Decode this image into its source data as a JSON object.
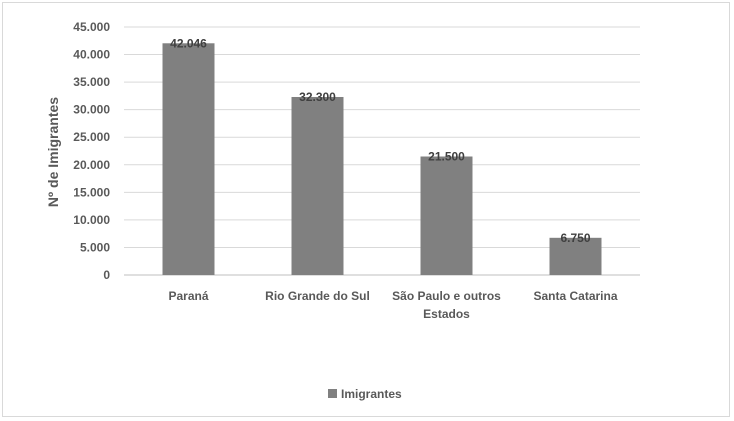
{
  "chart_data": {
    "type": "bar",
    "categories": [
      [
        "Paraná"
      ],
      [
        "Rio Grande do Sul"
      ],
      [
        "São Paulo e outros",
        "Estados"
      ],
      [
        "Santa Catarina"
      ]
    ],
    "series": [
      {
        "name": "Imigrantes",
        "values": [
          42046,
          32300,
          21500,
          6750
        ],
        "labels": [
          "42.046",
          "32.300",
          "21.500",
          "6.750"
        ],
        "color": "#808080"
      }
    ],
    "ylabel": "Nº de Imigrantes",
    "ylim": [
      0,
      45000
    ],
    "yticks": [
      0,
      5000,
      10000,
      15000,
      20000,
      25000,
      30000,
      35000,
      40000,
      45000
    ],
    "ytick_labels": [
      "0",
      "5.000",
      "10.000",
      "15.000",
      "20.000",
      "25.000",
      "30.000",
      "35.000",
      "40.000",
      "45.000"
    ],
    "grid": true,
    "legend": "bottom"
  }
}
